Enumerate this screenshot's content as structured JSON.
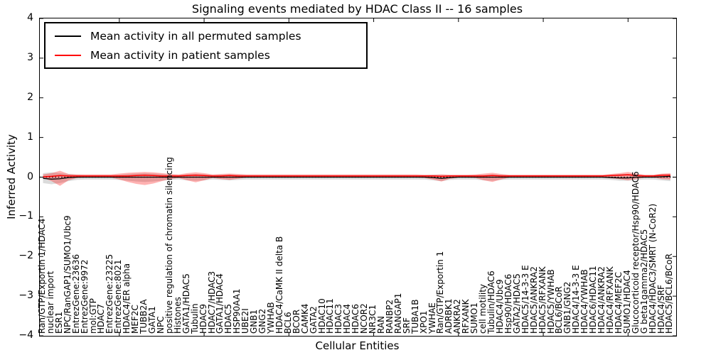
{
  "colors": {
    "permuted_line": "#000000",
    "patient_line": "#ff0000",
    "permuted_band": "#999999",
    "patient_band": "#ff0000",
    "frame": "#000000"
  },
  "legend": {
    "items": [
      {
        "label": "Mean activity in all permuted samples",
        "color": "#000000"
      },
      {
        "label": "Mean activity in patient samples",
        "color": "#ff0000"
      }
    ]
  },
  "chart_data": {
    "type": "line",
    "title": "Signaling events mediated by HDAC Class II -- 16 samples",
    "xlabel": "Cellular Entities",
    "ylabel": "Inferred Activity",
    "ylim": [
      -4,
      4
    ],
    "ytick_labels": [
      "4",
      "3",
      "2",
      "1",
      "0",
      "−1",
      "−2",
      "−3",
      "−4"
    ],
    "ytick_values": [
      4,
      3,
      2,
      1,
      0,
      -1,
      -2,
      -3,
      -4
    ],
    "xtick_major_indices": [
      9,
      19,
      29,
      39,
      49,
      59,
      69
    ],
    "grid": false,
    "legend_position": "upper left",
    "categories": [
      "Ran/GTP/Exportin 1/HDAC4",
      "nuclear import",
      "ESR1",
      "NPC/RanGAP1/SUMO1/Ubc9",
      "EntrezGene:23636",
      "EntrezGene:9972",
      "mol:GTP",
      "HDAC7",
      "EntrezGene:23225",
      "EntrezGene:8021",
      "HDAC4/ER alpha",
      "MEF2C",
      "TUBB2A",
      "GATA1",
      "NPC",
      "positive regulation of chromatin silencing",
      "Histones",
      "GATA1/HDAC5",
      "Tubulin",
      "HDAC9",
      "HDAC7/HDAC3",
      "GATA1/HDAC4",
      "HDAC5",
      "HSP90AA1",
      "UBE2I",
      "GNB1",
      "GNG2",
      "YWHAB",
      "HDAC4/CaMK II delta B",
      "BCL6",
      "BCOR",
      "CAMK4",
      "GATA2",
      "HDAC10",
      "HDAC11",
      "HDAC3",
      "HDAC4",
      "HDAC6",
      "NCOR2",
      "NR3C1",
      "RAN",
      "RANBP2",
      "RANGAP1",
      "SRF",
      "TUBA1B",
      "XPO1",
      "YWHAE",
      "Ran/GTP/Exportin 1",
      "ADRBK1",
      "ANKRA2",
      "RFXANK",
      "SUMO1",
      "cell motility",
      "Tubulin/HDAC6",
      "HDAC4/Ubc9",
      "Hsp90/HDAC6",
      "GATA2/HDAC5",
      "HDAC5/14-3-3 E",
      "HDAC5/ANKRA2",
      "HDAC5/RFXANK",
      "HDAC5/YWHAB",
      "BCL6/BCoR",
      "GNB1/GNG2",
      "HDAC4/14-3-3 E",
      "HDAC4/YWHAB",
      "HDAC6/HDAC11",
      "HDAC4/ANKRA2",
      "HDAC4/RFXANK",
      "HDAC4/MEF2C",
      "SUMO1/HDAC4",
      "Glucocorticoid receptor/Hsp90/HDAC6",
      "G beta1gamma2/HDAC5",
      "HDAC4/HDAC3/SMRT (N-CoR2)",
      "HDAC4/SRF",
      "HDAC5/BCL6/BCoR"
    ],
    "series": [
      {
        "name": "Mean activity in all permuted samples",
        "color": "#000000",
        "values": [
          -0.03,
          -0.05,
          -0.04,
          -0.01,
          0,
          0,
          0,
          0,
          0,
          0,
          0,
          0,
          0,
          0,
          0,
          0,
          0,
          0,
          0,
          0,
          0,
          0,
          0,
          0,
          0,
          0,
          0,
          0,
          0,
          0,
          0,
          0,
          0,
          0,
          0,
          0,
          0,
          0,
          0,
          0,
          0,
          0,
          0,
          0,
          0,
          0,
          -0.01,
          -0.03,
          -0.01,
          0,
          0,
          0,
          0,
          0,
          0,
          0,
          0,
          0,
          0,
          0,
          0,
          0,
          0,
          0,
          0,
          0,
          0,
          -0.01,
          -0.02,
          -0.02,
          0,
          0,
          0,
          0.01,
          0.02
        ]
      },
      {
        "name": "Mean activity in patient samples",
        "color": "#ff0000",
        "values": [
          0.01,
          0.02,
          0.04,
          0.03,
          0.03,
          0.03,
          0.03,
          0.03,
          0.03,
          0.03,
          0.03,
          0.04,
          0.05,
          0.04,
          0.03,
          0.03,
          0.03,
          0.04,
          0.05,
          0.04,
          0.03,
          0.03,
          0.04,
          0.03,
          0.03,
          0.03,
          0.03,
          0.03,
          0.03,
          0.03,
          0.03,
          0.03,
          0.03,
          0.03,
          0.03,
          0.03,
          0.03,
          0.03,
          0.03,
          0.03,
          0.03,
          0.03,
          0.03,
          0.03,
          0.03,
          0.03,
          0.03,
          0.02,
          0.03,
          0.03,
          0.03,
          0.03,
          0.03,
          0.04,
          0.03,
          0.03,
          0.03,
          0.03,
          0.03,
          0.03,
          0.03,
          0.03,
          0.03,
          0.03,
          0.03,
          0.03,
          0.03,
          0.04,
          0.05,
          0.06,
          0.04,
          0.03,
          0.03,
          0.05,
          0.05
        ]
      }
    ],
    "bands": [
      {
        "name": "permuted samples spread",
        "color": "#999999",
        "opacity": 0.35,
        "upper": [
          0.1,
          0.12,
          0.1,
          0.08,
          0.06,
          0.05,
          0.05,
          0.05,
          0.05,
          0.06,
          0.08,
          0.09,
          0.1,
          0.09,
          0.08,
          0.06,
          0.05,
          0.07,
          0.08,
          0.07,
          0.05,
          0.06,
          0.07,
          0.06,
          0.05,
          0.05,
          0.05,
          0.05,
          0.05,
          0.05,
          0.05,
          0.05,
          0.05,
          0.05,
          0.05,
          0.05,
          0.05,
          0.05,
          0.05,
          0.05,
          0.05,
          0.05,
          0.05,
          0.05,
          0.05,
          0.05,
          0.06,
          0.06,
          0.05,
          0.05,
          0.05,
          0.05,
          0.06,
          0.07,
          0.06,
          0.05,
          0.05,
          0.05,
          0.05,
          0.05,
          0.05,
          0.05,
          0.05,
          0.05,
          0.05,
          0.05,
          0.05,
          0.06,
          0.08,
          0.08,
          0.06,
          0.05,
          0.05,
          0.07,
          0.08
        ],
        "lower": [
          -0.15,
          -0.18,
          -0.15,
          -0.1,
          -0.07,
          -0.06,
          -0.06,
          -0.06,
          -0.06,
          -0.07,
          -0.09,
          -0.11,
          -0.12,
          -0.11,
          -0.09,
          -0.07,
          -0.06,
          -0.08,
          -0.09,
          -0.08,
          -0.06,
          -0.07,
          -0.08,
          -0.07,
          -0.06,
          -0.06,
          -0.06,
          -0.06,
          -0.06,
          -0.06,
          -0.06,
          -0.06,
          -0.06,
          -0.06,
          -0.06,
          -0.06,
          -0.06,
          -0.06,
          -0.06,
          -0.06,
          -0.06,
          -0.06,
          -0.06,
          -0.06,
          -0.06,
          -0.06,
          -0.08,
          -0.1,
          -0.07,
          -0.06,
          -0.06,
          -0.06,
          -0.08,
          -0.09,
          -0.07,
          -0.06,
          -0.06,
          -0.06,
          -0.06,
          -0.06,
          -0.06,
          -0.06,
          -0.06,
          -0.06,
          -0.06,
          -0.06,
          -0.06,
          -0.07,
          -0.09,
          -0.09,
          -0.07,
          -0.06,
          -0.06,
          -0.08,
          -0.1
        ]
      },
      {
        "name": "patient samples spread",
        "color": "#ff0000",
        "opacity": 0.3,
        "upper": [
          0.07,
          0.1,
          0.16,
          0.08,
          0.07,
          0.07,
          0.07,
          0.07,
          0.07,
          0.09,
          0.11,
          0.12,
          0.13,
          0.12,
          0.1,
          0.08,
          0.07,
          0.1,
          0.12,
          0.1,
          0.07,
          0.08,
          0.09,
          0.08,
          0.07,
          0.07,
          0.07,
          0.07,
          0.07,
          0.07,
          0.07,
          0.07,
          0.07,
          0.07,
          0.07,
          0.07,
          0.07,
          0.07,
          0.07,
          0.07,
          0.07,
          0.07,
          0.07,
          0.07,
          0.07,
          0.06,
          0.06,
          0.07,
          0.06,
          0.06,
          0.06,
          0.07,
          0.09,
          0.11,
          0.08,
          0.06,
          0.06,
          0.06,
          0.06,
          0.06,
          0.06,
          0.06,
          0.06,
          0.06,
          0.06,
          0.06,
          0.06,
          0.08,
          0.1,
          0.13,
          0.09,
          0.06,
          0.06,
          0.09,
          0.1
        ],
        "lower": [
          -0.02,
          -0.1,
          -0.22,
          -0.08,
          -0.02,
          -0.01,
          -0.01,
          -0.01,
          -0.01,
          -0.06,
          -0.12,
          -0.17,
          -0.2,
          -0.16,
          -0.1,
          -0.05,
          -0.02,
          -0.08,
          -0.13,
          -0.08,
          -0.02,
          -0.05,
          -0.07,
          -0.04,
          -0.01,
          -0.01,
          -0.01,
          -0.01,
          -0.01,
          -0.01,
          -0.01,
          -0.01,
          -0.01,
          -0.01,
          -0.01,
          -0.01,
          -0.01,
          -0.01,
          -0.01,
          -0.01,
          -0.01,
          -0.01,
          -0.01,
          -0.01,
          -0.01,
          -0.02,
          -0.06,
          -0.11,
          -0.04,
          -0.01,
          -0.01,
          -0.02,
          -0.08,
          -0.12,
          -0.06,
          -0.01,
          -0.01,
          -0.01,
          -0.01,
          -0.01,
          -0.01,
          -0.01,
          -0.01,
          -0.01,
          -0.01,
          -0.01,
          -0.01,
          -0.03,
          -0.05,
          -0.08,
          -0.05,
          -0.01,
          -0.01,
          -0.05,
          -0.06
        ]
      }
    ],
    "zero_line": {
      "value": 0,
      "style": "dotted",
      "color": "#000000"
    }
  }
}
